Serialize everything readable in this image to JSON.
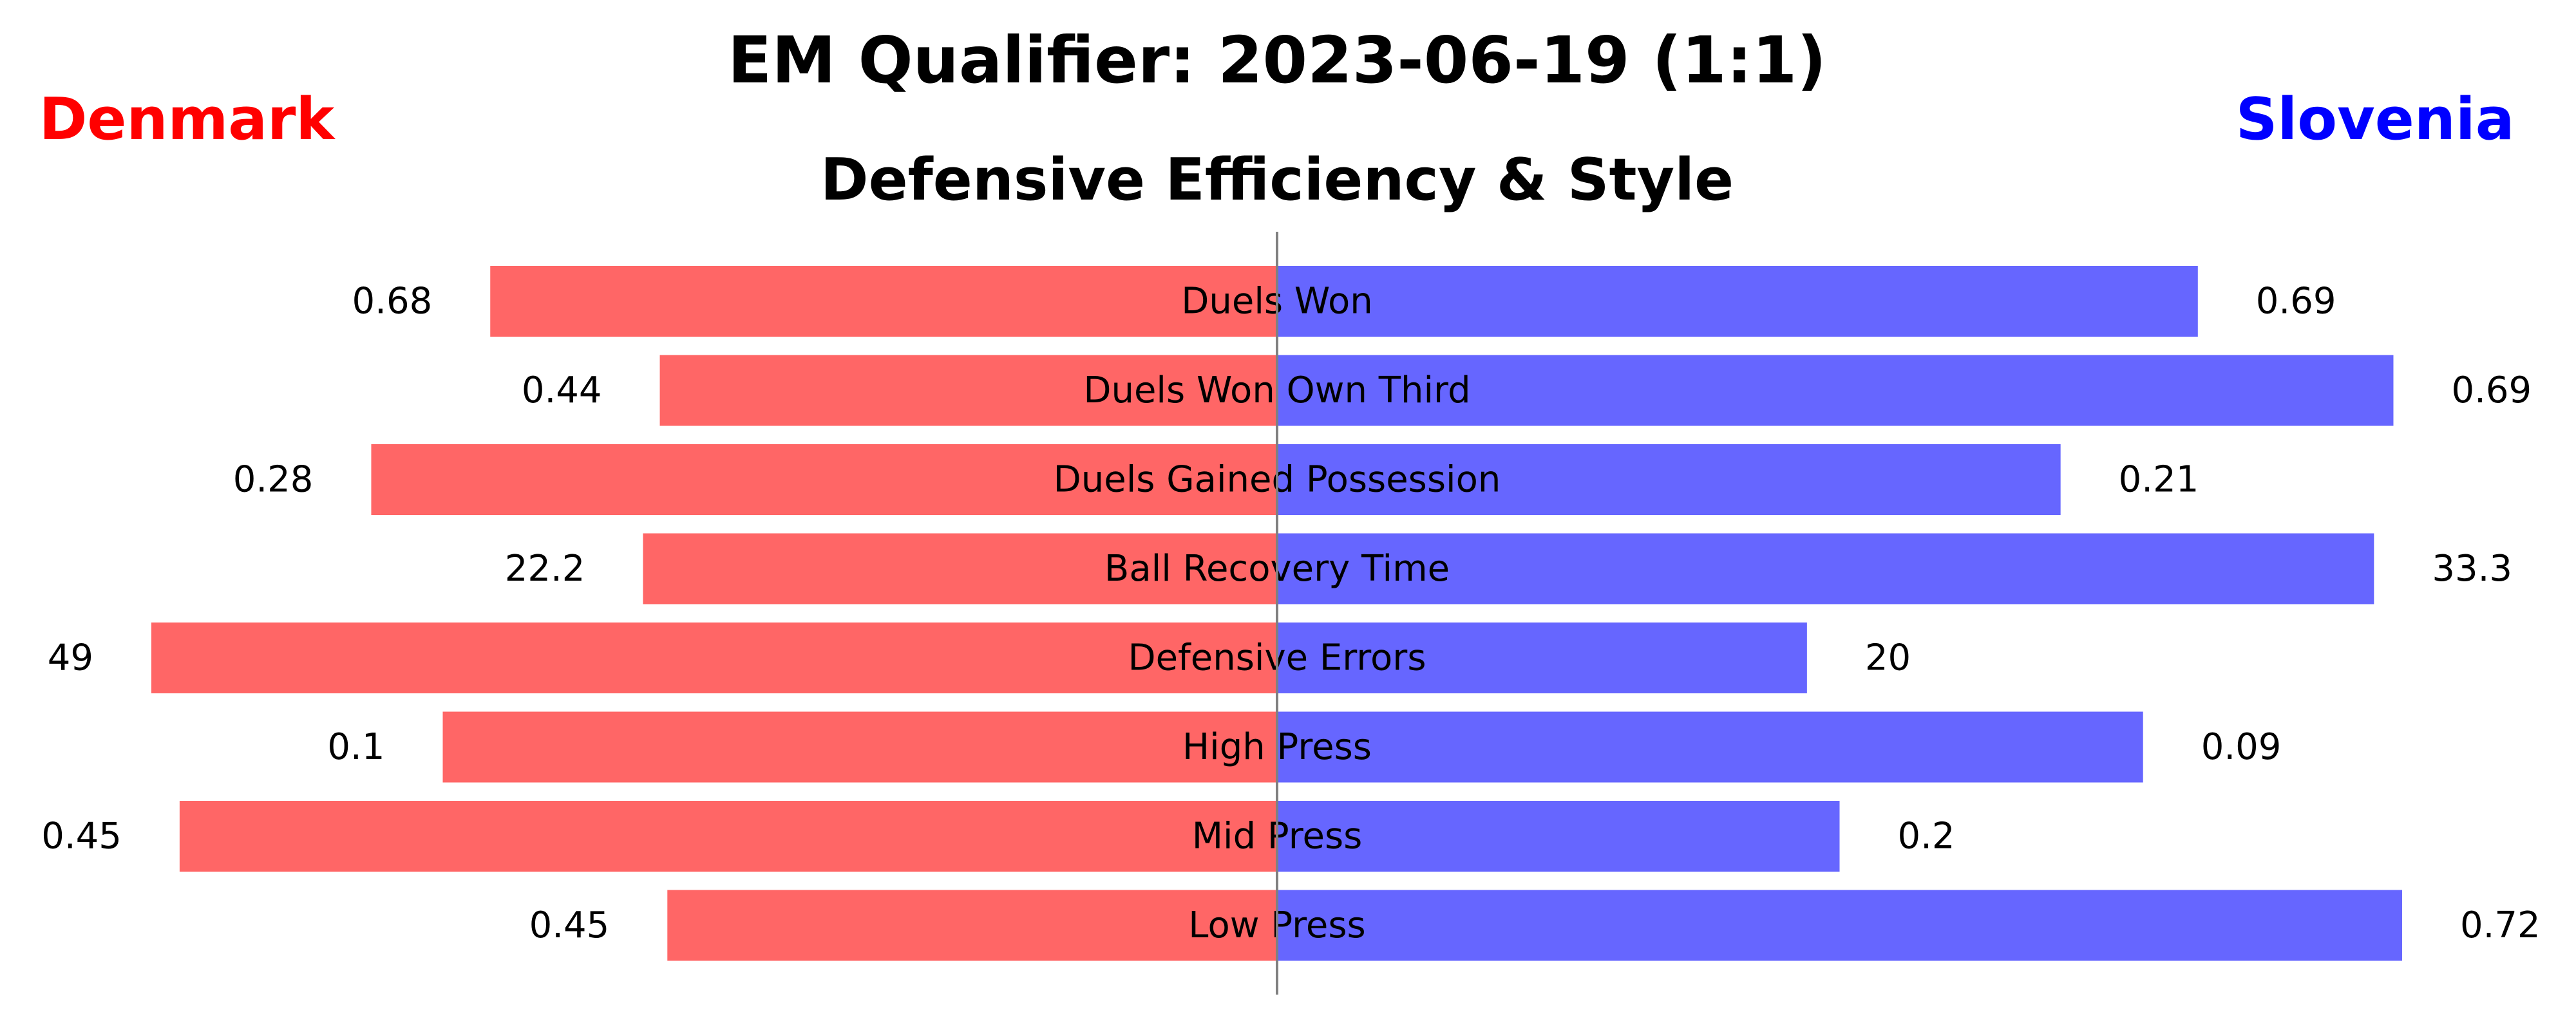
{
  "chart_data": {
    "type": "bar",
    "orientation": "horizontal-diverging",
    "title": "EM Qualifier: 2023-06-19 (1:1)",
    "subtitle": "Defensive Efficiency & Style",
    "left_team": {
      "name": "Denmark",
      "color": "#ff0000",
      "bar_color": "#ff6666"
    },
    "right_team": {
      "name": "Slovenia",
      "color": "#0000ff",
      "bar_color": "#6666ff"
    },
    "categories": [
      "Duels Won",
      "Duels Won Own Third",
      "Duels Gained Possession",
      "Ball Recovery Time",
      "Defensive Errors",
      "High Press",
      "Mid Press",
      "Low Press"
    ],
    "series": [
      {
        "name": "Denmark",
        "side": "left",
        "values": [
          0.68,
          0.44,
          0.28,
          22.2,
          49,
          0.1,
          0.45,
          0.45
        ],
        "labels": [
          "0.68",
          "0.44",
          "0.28",
          "22.2",
          "49",
          "0.1",
          "0.45",
          "0.45"
        ]
      },
      {
        "name": "Slovenia",
        "side": "right",
        "values": [
          0.69,
          0.69,
          0.21,
          33.3,
          20,
          0.09,
          0.2,
          0.72
        ],
        "labels": [
          "0.69",
          "0.69",
          "0.21",
          "33.3",
          "20",
          "0.09",
          "0.2",
          "0.72"
        ]
      }
    ],
    "grid": false,
    "center_line_color": "#808080"
  }
}
